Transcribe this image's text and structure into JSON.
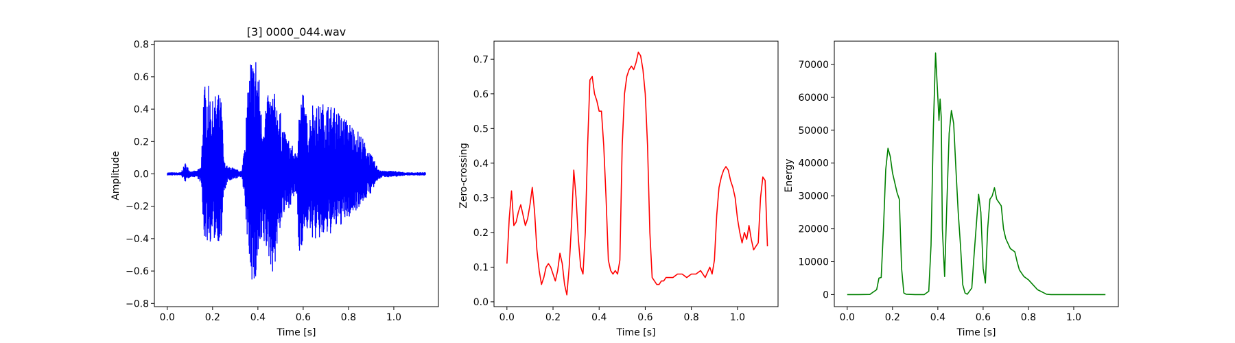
{
  "figure": {
    "background": "#ffffff"
  },
  "chart_data": [
    {
      "type": "line",
      "title": "[3] 0000_044.wav",
      "xlabel": "Time [s]",
      "ylabel": "Amplitude",
      "color": "#0000ff",
      "xlim": [
        -0.057,
        1.197
      ],
      "ylim": [
        -0.82,
        0.82
      ],
      "xticks": [
        0.0,
        0.2,
        0.4,
        0.6,
        0.8,
        1.0
      ],
      "xtick_labels": [
        "0.0",
        "0.2",
        "0.4",
        "0.6",
        "0.8",
        "1.0"
      ],
      "yticks": [
        -0.8,
        -0.6,
        -0.4,
        -0.2,
        0.0,
        0.2,
        0.4,
        0.6,
        0.8
      ],
      "ytick_labels": [
        "−0.8",
        "−0.6",
        "−0.4",
        "−0.2",
        "0.0",
        "0.2",
        "0.4",
        "0.6",
        "0.8"
      ],
      "envelope": {
        "x": [
          0.0,
          0.06,
          0.08,
          0.1,
          0.13,
          0.15,
          0.16,
          0.18,
          0.2,
          0.22,
          0.24,
          0.25,
          0.27,
          0.28,
          0.3,
          0.33,
          0.36,
          0.37,
          0.38,
          0.39,
          0.4,
          0.42,
          0.43,
          0.45,
          0.47,
          0.5,
          0.52,
          0.55,
          0.57,
          0.58,
          0.6,
          0.62,
          0.64,
          0.66,
          0.7,
          0.75,
          0.8,
          0.85,
          0.9,
          0.93,
          0.95,
          1.0,
          1.05,
          1.1,
          1.14
        ],
        "upper": [
          0.01,
          0.01,
          0.07,
          0.02,
          0.02,
          0.05,
          0.55,
          0.56,
          0.45,
          0.52,
          0.46,
          0.08,
          0.04,
          0.05,
          0.03,
          0.02,
          0.6,
          0.77,
          0.7,
          0.76,
          0.72,
          0.3,
          0.45,
          0.5,
          0.52,
          0.38,
          0.25,
          0.18,
          0.12,
          0.4,
          0.53,
          0.3,
          0.46,
          0.42,
          0.45,
          0.4,
          0.33,
          0.26,
          0.12,
          0.04,
          0.02,
          0.02,
          0.01,
          0.01,
          0.01
        ],
        "lower": [
          -0.01,
          -0.01,
          -0.05,
          -0.02,
          -0.02,
          -0.06,
          -0.4,
          -0.43,
          -0.42,
          -0.41,
          -0.44,
          -0.12,
          -0.04,
          -0.05,
          -0.03,
          -0.02,
          -0.52,
          -0.62,
          -0.74,
          -0.7,
          -0.55,
          -0.5,
          -0.45,
          -0.55,
          -0.63,
          -0.32,
          -0.25,
          -0.18,
          -0.12,
          -0.55,
          -0.4,
          -0.35,
          -0.4,
          -0.42,
          -0.4,
          -0.34,
          -0.28,
          -0.2,
          -0.12,
          -0.04,
          -0.02,
          -0.02,
          -0.01,
          -0.01,
          -0.01
        ]
      }
    },
    {
      "type": "line",
      "title": "",
      "xlabel": "Time [s]",
      "ylabel": "Zero-crossing",
      "color": "#ff0000",
      "xlim": [
        -0.056,
        1.176
      ],
      "ylim": [
        -0.014,
        0.752
      ],
      "xticks": [
        0.0,
        0.2,
        0.4,
        0.6,
        0.8,
        1.0
      ],
      "xtick_labels": [
        "0.0",
        "0.2",
        "0.4",
        "0.6",
        "0.8",
        "1.0"
      ],
      "yticks": [
        0.0,
        0.1,
        0.2,
        0.3,
        0.4,
        0.5,
        0.6,
        0.7
      ],
      "ytick_labels": [
        "0.0",
        "0.1",
        "0.2",
        "0.3",
        "0.4",
        "0.5",
        "0.6",
        "0.7"
      ],
      "x": [
        0.0,
        0.01,
        0.02,
        0.03,
        0.04,
        0.05,
        0.06,
        0.07,
        0.08,
        0.09,
        0.1,
        0.11,
        0.12,
        0.13,
        0.14,
        0.15,
        0.16,
        0.17,
        0.18,
        0.19,
        0.2,
        0.21,
        0.22,
        0.23,
        0.24,
        0.25,
        0.26,
        0.27,
        0.28,
        0.29,
        0.3,
        0.31,
        0.32,
        0.33,
        0.34,
        0.35,
        0.36,
        0.37,
        0.38,
        0.39,
        0.4,
        0.41,
        0.42,
        0.43,
        0.44,
        0.45,
        0.46,
        0.47,
        0.48,
        0.49,
        0.5,
        0.51,
        0.52,
        0.53,
        0.54,
        0.55,
        0.56,
        0.57,
        0.58,
        0.59,
        0.6,
        0.61,
        0.62,
        0.63,
        0.64,
        0.65,
        0.66,
        0.67,
        0.68,
        0.69,
        0.7,
        0.72,
        0.74,
        0.76,
        0.78,
        0.8,
        0.82,
        0.84,
        0.86,
        0.88,
        0.89,
        0.9,
        0.91,
        0.92,
        0.93,
        0.94,
        0.95,
        0.96,
        0.97,
        0.98,
        0.99,
        1.0,
        1.01,
        1.02,
        1.03,
        1.04,
        1.05,
        1.06,
        1.07,
        1.08,
        1.09,
        1.1,
        1.11,
        1.12,
        1.13
      ],
      "y": [
        0.11,
        0.24,
        0.32,
        0.22,
        0.23,
        0.26,
        0.28,
        0.25,
        0.22,
        0.24,
        0.28,
        0.33,
        0.26,
        0.15,
        0.09,
        0.05,
        0.07,
        0.1,
        0.11,
        0.1,
        0.08,
        0.06,
        0.09,
        0.14,
        0.11,
        0.05,
        0.02,
        0.1,
        0.22,
        0.38,
        0.3,
        0.18,
        0.1,
        0.08,
        0.2,
        0.45,
        0.64,
        0.65,
        0.6,
        0.58,
        0.55,
        0.55,
        0.45,
        0.3,
        0.12,
        0.09,
        0.08,
        0.09,
        0.08,
        0.12,
        0.45,
        0.6,
        0.65,
        0.67,
        0.68,
        0.67,
        0.69,
        0.72,
        0.71,
        0.67,
        0.6,
        0.45,
        0.2,
        0.07,
        0.06,
        0.05,
        0.05,
        0.06,
        0.06,
        0.07,
        0.07,
        0.07,
        0.08,
        0.08,
        0.07,
        0.08,
        0.08,
        0.09,
        0.07,
        0.1,
        0.08,
        0.12,
        0.25,
        0.33,
        0.36,
        0.38,
        0.39,
        0.38,
        0.35,
        0.33,
        0.3,
        0.24,
        0.2,
        0.17,
        0.2,
        0.18,
        0.22,
        0.18,
        0.15,
        0.16,
        0.17,
        0.3,
        0.36,
        0.35,
        0.16
      ]
    },
    {
      "type": "line",
      "title": "",
      "xlabel": "Time [s]",
      "ylabel": "Energy",
      "color": "#008000",
      "xlim": [
        -0.057,
        1.197
      ],
      "ylim": [
        -3670,
        77090
      ],
      "xticks": [
        0.0,
        0.2,
        0.4,
        0.6,
        0.8,
        1.0
      ],
      "xtick_labels": [
        "0.0",
        "0.2",
        "0.4",
        "0.6",
        "0.8",
        "1.0"
      ],
      "yticks": [
        0,
        10000,
        20000,
        30000,
        40000,
        50000,
        60000,
        70000
      ],
      "ytick_labels": [
        "0",
        "10000",
        "20000",
        "30000",
        "40000",
        "50000",
        "60000",
        "70000"
      ],
      "x": [
        0.0,
        0.05,
        0.1,
        0.13,
        0.14,
        0.15,
        0.16,
        0.17,
        0.18,
        0.19,
        0.2,
        0.21,
        0.22,
        0.23,
        0.24,
        0.25,
        0.26,
        0.3,
        0.34,
        0.36,
        0.37,
        0.38,
        0.39,
        0.4,
        0.405,
        0.41,
        0.415,
        0.42,
        0.43,
        0.44,
        0.45,
        0.46,
        0.47,
        0.48,
        0.49,
        0.5,
        0.51,
        0.52,
        0.53,
        0.55,
        0.56,
        0.58,
        0.59,
        0.6,
        0.61,
        0.62,
        0.63,
        0.64,
        0.65,
        0.66,
        0.67,
        0.68,
        0.69,
        0.7,
        0.72,
        0.74,
        0.75,
        0.76,
        0.78,
        0.8,
        0.82,
        0.84,
        0.86,
        0.88,
        0.9,
        0.92,
        0.94,
        1.0,
        1.1,
        1.14
      ],
      "y": [
        0,
        0,
        50,
        1500,
        5000,
        5200,
        20000,
        38000,
        44500,
        42000,
        37000,
        34000,
        31000,
        29000,
        8000,
        500,
        100,
        0,
        0,
        1000,
        15000,
        50000,
        73500,
        60000,
        53000,
        59500,
        54000,
        20000,
        5500,
        28000,
        49000,
        56000,
        52000,
        38000,
        25000,
        15000,
        3000,
        500,
        100,
        2000,
        12000,
        30500,
        25000,
        8000,
        3500,
        20000,
        29000,
        30000,
        32500,
        29000,
        28000,
        27000,
        20000,
        17000,
        14000,
        13000,
        10000,
        7500,
        5500,
        4500,
        3000,
        1500,
        800,
        100,
        0,
        0,
        0,
        0,
        0,
        0
      ]
    }
  ]
}
